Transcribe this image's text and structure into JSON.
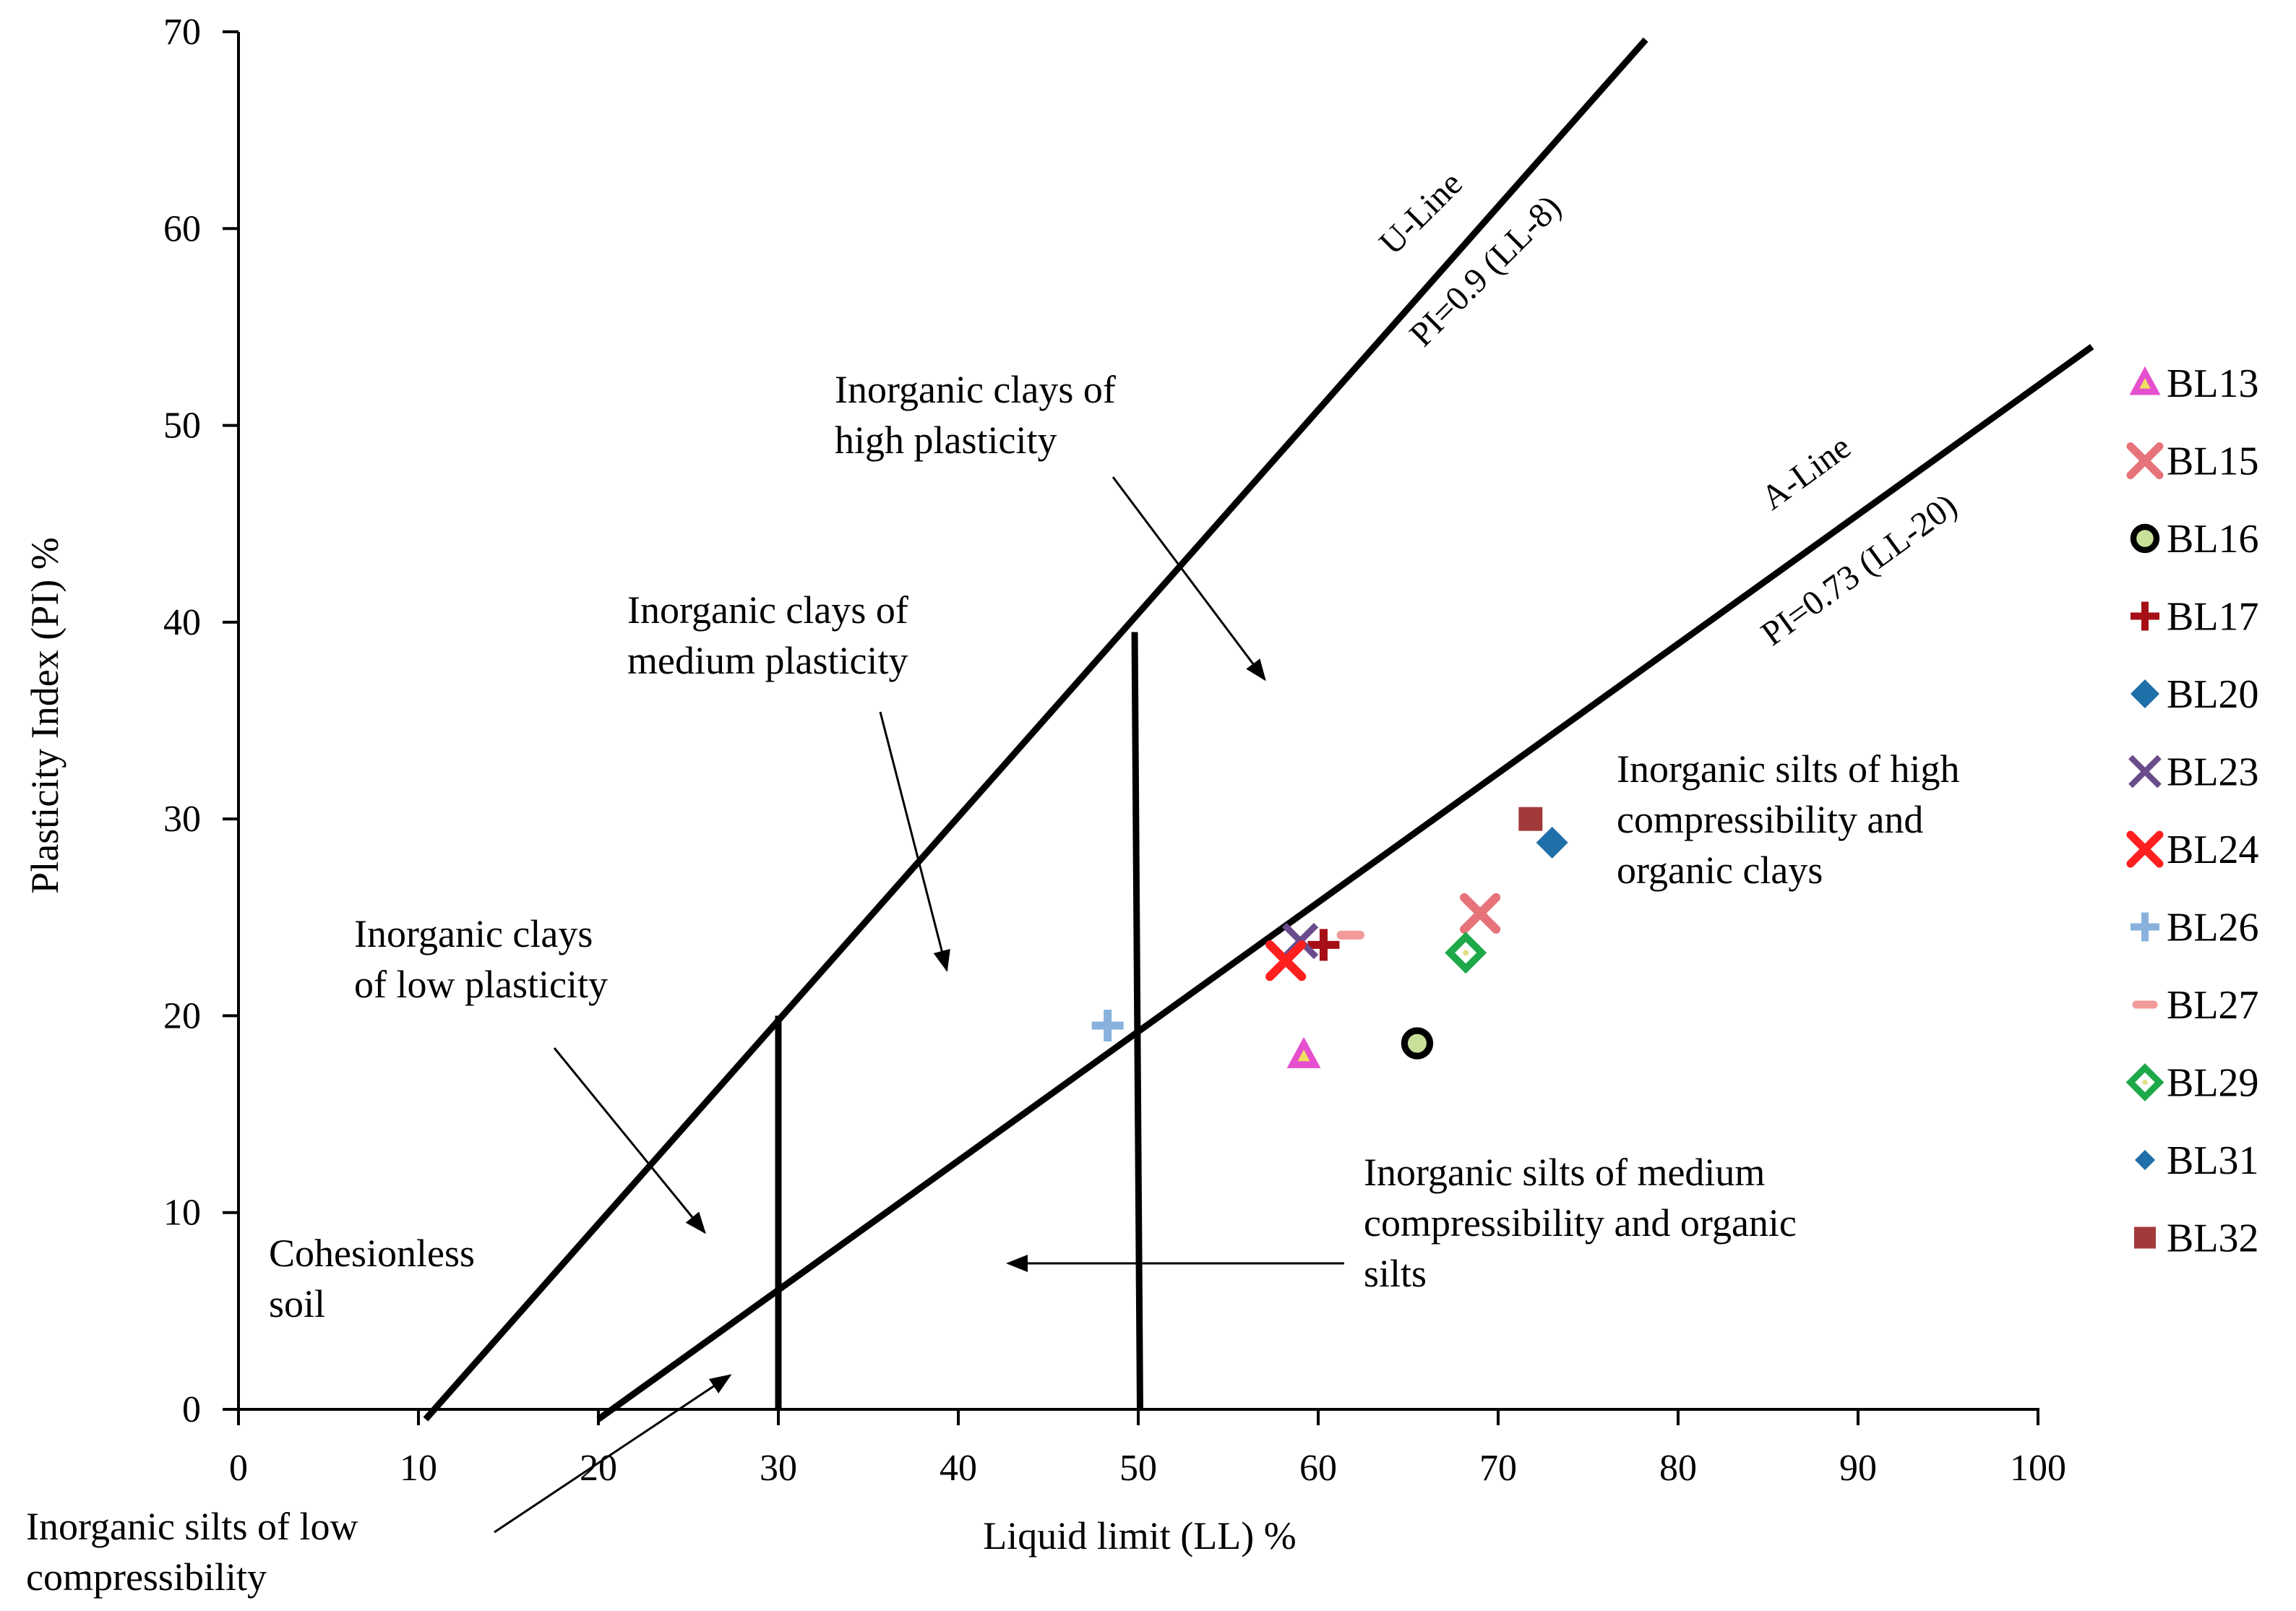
{
  "chart_data": {
    "type": "scatter",
    "title": "",
    "xlabel": "Liquid limit (LL) %",
    "ylabel": "Plasticity Index (PI) %",
    "xlim": [
      0,
      100
    ],
    "ylim": [
      0,
      70
    ],
    "xticks": [
      "0",
      "10",
      "20",
      "30",
      "40",
      "50",
      "60",
      "70",
      "80",
      "90",
      "100"
    ],
    "yticks": [
      "0",
      "10",
      "20",
      "30",
      "40",
      "50",
      "60",
      "70"
    ],
    "grid": false,
    "legend_position": "right",
    "reference_lines": {
      "u_line": {
        "name": "U-Line",
        "equation": "PI=0.9 (LL-8)",
        "points": [
          [
            10.4,
            -0.5
          ],
          [
            78.2,
            69.6
          ]
        ]
      },
      "a_line": {
        "name": "A-Line",
        "equation": "PI=0.73 (LL-20)",
        "points": [
          [
            20,
            -0.5
          ],
          [
            103,
            54
          ]
        ]
      },
      "ll30": {
        "points": [
          [
            30,
            20
          ],
          [
            30,
            0
          ]
        ]
      },
      "ll50": {
        "points": [
          [
            49.8,
            39.5
          ],
          [
            50.1,
            0
          ]
        ]
      }
    },
    "series": [
      {
        "name": "BL13",
        "x": 59.2,
        "y": 18.0,
        "marker": "triangle",
        "color": "#e64fce"
      },
      {
        "name": "BL15",
        "x": 69.0,
        "y": 25.2,
        "marker": "x-thick",
        "color": "#e6737a"
      },
      {
        "name": "BL16",
        "x": 65.5,
        "y": 18.6,
        "marker": "ring",
        "color": "#000000"
      },
      {
        "name": "BL17",
        "x": 60.3,
        "y": 23.6,
        "marker": "plus",
        "color": "#a50f15"
      },
      {
        "name": "BL20",
        "x": 73.0,
        "y": 28.8,
        "marker": "diamond",
        "color": "#1f6fa8"
      },
      {
        "name": "BL23",
        "x": 59.0,
        "y": 23.8,
        "marker": "x",
        "color": "#6a4c8c"
      },
      {
        "name": "BL24",
        "x": 58.2,
        "y": 22.8,
        "marker": "x-thick",
        "color": "#ff1f1f"
      },
      {
        "name": "BL26",
        "x": 48.3,
        "y": 19.5,
        "marker": "plus",
        "color": "#88b2dd"
      },
      {
        "name": "BL27",
        "x": 61.8,
        "y": 24.1,
        "marker": "dash",
        "color": "#f29a9a"
      },
      {
        "name": "BL29",
        "x": 68.2,
        "y": 23.2,
        "marker": "diamond-open",
        "color": "#1fa84a"
      },
      {
        "name": "BL31",
        "x": 73.0,
        "y": 28.8,
        "marker": "diamond-small",
        "color": "#1f6fa8"
      },
      {
        "name": "BL32",
        "x": 71.8,
        "y": 30.0,
        "marker": "square",
        "color": "#a33a3a"
      }
    ],
    "annotations": [
      {
        "id": "cohesionless",
        "lines": [
          "Cohesionless",
          "soil"
        ]
      },
      {
        "id": "clays-low",
        "lines": [
          "Inorganic clays",
          "of low plasticity"
        ]
      },
      {
        "id": "clays-medium",
        "lines": [
          "Inorganic clays of",
          "medium plasticity"
        ]
      },
      {
        "id": "clays-high",
        "lines": [
          "Inorganic clays of",
          "high plasticity"
        ]
      },
      {
        "id": "silts-high",
        "lines": [
          "Inorganic silts of high",
          "compressibility and",
          "organic clays"
        ]
      },
      {
        "id": "silts-medium",
        "lines": [
          "Inorganic silts of medium",
          "compressibility and organic",
          "silts"
        ]
      },
      {
        "id": "silts-low",
        "lines": [
          "Inorganic silts of low",
          "compressibility"
        ]
      }
    ]
  }
}
